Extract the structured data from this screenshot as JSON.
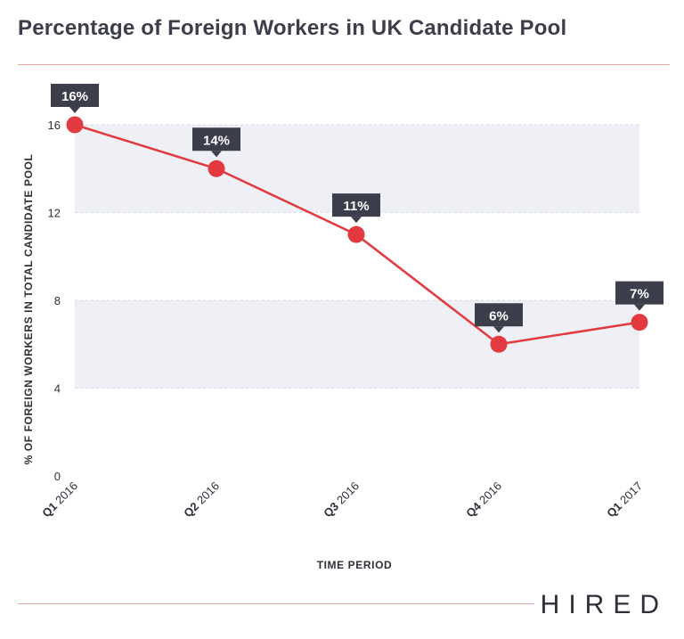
{
  "header": {
    "title": "Percentage of Foreign Workers in UK Candidate Pool"
  },
  "footer": {
    "logo": "HIRED"
  },
  "colors": {
    "line": "#e23a40",
    "band": "#eef0f5",
    "label_bg": "#3d3e4c",
    "rule": "#e7a9a3"
  },
  "chart_data": {
    "type": "line",
    "categories": [
      {
        "bold": "Q1",
        "rest": " 2016"
      },
      {
        "bold": "Q2",
        "rest": " 2016"
      },
      {
        "bold": "Q3",
        "rest": " 2016"
      },
      {
        "bold": "Q4",
        "rest": " 2016"
      },
      {
        "bold": "Q1",
        "rest": " 2017"
      }
    ],
    "values": [
      16,
      14,
      11,
      6,
      7
    ],
    "data_labels": [
      "16%",
      "14%",
      "11%",
      "6%",
      "7%"
    ],
    "xlabel": "TIME PERIOD",
    "ylabel": "% OF FOREIGN WORKERS IN TOTAL CANDIDATE POOL",
    "ylim": [
      0,
      16
    ],
    "yticks": [
      "0",
      "4",
      "8",
      "12",
      "16"
    ],
    "grid": "alternating horizontal bands"
  }
}
